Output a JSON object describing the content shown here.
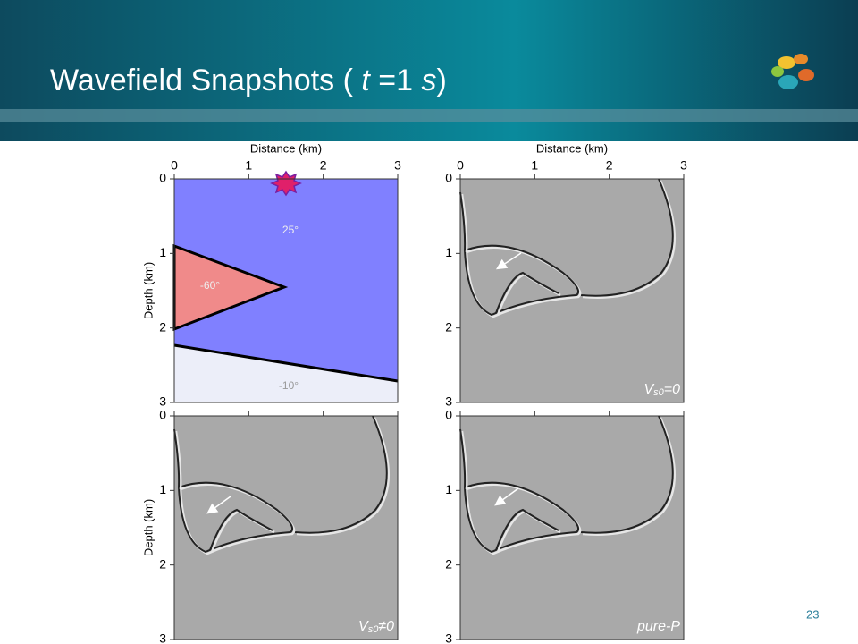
{
  "title": {
    "lead": "Wavefield Snapshots (",
    "t": "t",
    "middle": "=1",
    "s": "s",
    "close": ")"
  },
  "page_number": "23",
  "axes": {
    "x_label": "Distance (km)",
    "y_label": "Depth (km)",
    "ticks": [
      0,
      1,
      2,
      3
    ]
  },
  "model": {
    "angles": [
      "25°",
      "-60°",
      "-10°"
    ]
  },
  "panels": [
    {
      "main": "V",
      "sub": "s0",
      "rest": "=0"
    },
    {
      "main": "V",
      "sub": "s0",
      "rest": "≠0"
    },
    {
      "main": "pure-P"
    }
  ]
}
